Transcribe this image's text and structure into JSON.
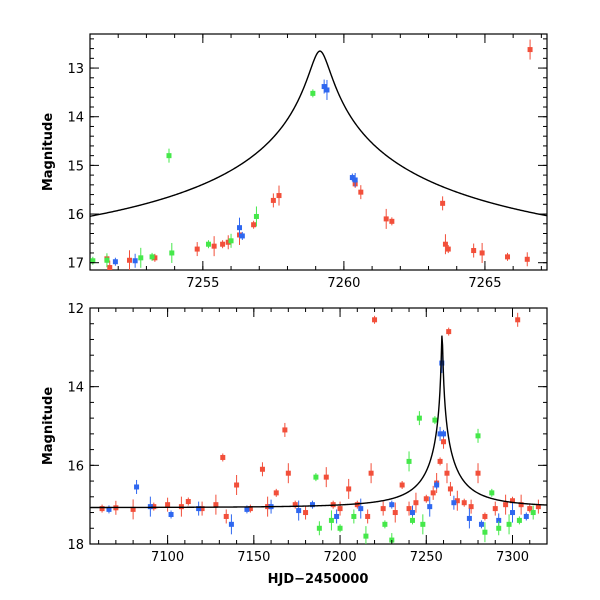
{
  "colors": {
    "red": "#f24f3a",
    "blue": "#2e67f0",
    "green": "#45e84a",
    "model": "#000000"
  },
  "chart_data": [
    {
      "type": "scatter",
      "name": "zoom-panel",
      "title": "",
      "xlabel": "",
      "ylabel": "Magnitude",
      "xlim": [
        7251,
        7267.2
      ],
      "ylim": [
        17.15,
        12.3
      ],
      "y_inverted": true,
      "xticks": [
        7255,
        7260,
        7265
      ],
      "xtick_labels": [
        "7255",
        "7260",
        "7265"
      ],
      "yticks": [
        13,
        14,
        15,
        16,
        17
      ],
      "ytick_labels": [
        "13",
        "14",
        "15",
        "16",
        "17"
      ],
      "model_curve": {
        "peak_x": 7259.15,
        "peak_mag": 12.65,
        "baseline_mag": 17.08,
        "width": 0.32
      },
      "series": [
        {
          "name": "red",
          "points": [
            [
              7251.6,
              16.92
            ],
            [
              7251.7,
              17.1
            ],
            [
              7252.4,
              16.95
            ],
            [
              7253.3,
              16.9
            ],
            [
              7254.8,
              16.72
            ],
            [
              7255.4,
              16.66
            ],
            [
              7255.7,
              16.62
            ],
            [
              7255.9,
              16.58
            ],
            [
              7256.3,
              16.43
            ],
            [
              7256.8,
              16.22
            ],
            [
              7257.5,
              15.72
            ],
            [
              7257.7,
              15.62
            ],
            [
              7260.4,
              15.38
            ],
            [
              7260.6,
              15.55
            ],
            [
              7261.5,
              16.1
            ],
            [
              7261.7,
              16.15
            ],
            [
              7263.5,
              15.78
            ],
            [
              7263.6,
              16.62
            ],
            [
              7263.7,
              16.72
            ],
            [
              7264.6,
              16.75
            ],
            [
              7264.9,
              16.8
            ],
            [
              7265.8,
              16.88
            ],
            [
              7266.5,
              16.93
            ],
            [
              7266.6,
              12.62
            ]
          ]
        },
        {
          "name": "blue",
          "points": [
            [
              7251.9,
              16.98
            ],
            [
              7252.6,
              16.96
            ],
            [
              7256.3,
              16.28
            ],
            [
              7256.4,
              16.45
            ],
            [
              7259.3,
              13.38
            ],
            [
              7259.4,
              13.45
            ],
            [
              7260.3,
              15.25
            ],
            [
              7260.4,
              15.3
            ]
          ]
        },
        {
          "name": "green",
          "points": [
            [
              7251.1,
              16.96
            ],
            [
              7251.6,
              16.95
            ],
            [
              7252.8,
              16.9
            ],
            [
              7253.2,
              16.88
            ],
            [
              7253.8,
              14.8
            ],
            [
              7253.9,
              16.8
            ],
            [
              7255.2,
              16.62
            ],
            [
              7256.0,
              16.55
            ],
            [
              7256.9,
              16.05
            ],
            [
              7258.9,
              13.52
            ]
          ]
        }
      ]
    },
    {
      "type": "scatter",
      "name": "full-panel",
      "title": "",
      "xlabel": "HJD−2450000",
      "ylabel": "Magnitude",
      "xlim": [
        7055,
        7320
      ],
      "ylim": [
        18,
        12
      ],
      "y_inverted": true,
      "xticks": [
        7100,
        7150,
        7200,
        7250,
        7300
      ],
      "xtick_labels": [
        "7100",
        "7150",
        "7200",
        "7250",
        "7300"
      ],
      "yticks": [
        12,
        14,
        16,
        18
      ],
      "ytick_labels": [
        "12",
        "14",
        "16",
        "18"
      ],
      "model_curve": {
        "peak_x": 7259.15,
        "peak_mag": 12.65,
        "baseline_mag": 17.08,
        "width": 0.32
      },
      "series": [
        {
          "name": "red",
          "points": [
            [
              7062,
              17.1
            ],
            [
              7070,
              17.08
            ],
            [
              7080,
              17.12
            ],
            [
              7092,
              17.05
            ],
            [
              7100,
              17.0
            ],
            [
              7108,
              17.05
            ],
            [
              7112,
              16.92
            ],
            [
              7120,
              17.1
            ],
            [
              7128,
              17.0
            ],
            [
              7132,
              15.8
            ],
            [
              7134,
              17.3
            ],
            [
              7140,
              16.5
            ],
            [
              7148,
              17.1
            ],
            [
              7155,
              16.1
            ],
            [
              7158,
              17.05
            ],
            [
              7163,
              16.7
            ],
            [
              7168,
              15.1
            ],
            [
              7170,
              16.2
            ],
            [
              7174,
              17.0
            ],
            [
              7180,
              17.2
            ],
            [
              7192,
              16.3
            ],
            [
              7196,
              17.0
            ],
            [
              7200,
              17.1
            ],
            [
              7205,
              16.6
            ],
            [
              7210,
              17.0
            ],
            [
              7216,
              17.3
            ],
            [
              7218,
              16.2
            ],
            [
              7220,
              12.3
            ],
            [
              7225,
              17.1
            ],
            [
              7232,
              17.2
            ],
            [
              7236,
              16.5
            ],
            [
              7240,
              17.1
            ],
            [
              7244,
              16.95
            ],
            [
              7250,
              16.85
            ],
            [
              7254,
              16.7
            ],
            [
              7256,
              16.45
            ],
            [
              7258,
              15.9
            ],
            [
              7260,
              15.4
            ],
            [
              7262,
              16.2
            ],
            [
              7263,
              12.6
            ],
            [
              7264,
              16.6
            ],
            [
              7268,
              16.9
            ],
            [
              7272,
              16.95
            ],
            [
              7276,
              17.05
            ],
            [
              7280,
              16.2
            ],
            [
              7284,
              17.3
            ],
            [
              7290,
              17.1
            ],
            [
              7296,
              17.0
            ],
            [
              7300,
              16.9
            ],
            [
              7303,
              12.3
            ],
            [
              7305,
              17.0
            ],
            [
              7310,
              17.1
            ],
            [
              7315,
              17.05
            ]
          ]
        },
        {
          "name": "blue",
          "points": [
            [
              7066,
              17.12
            ],
            [
              7082,
              16.55
            ],
            [
              7090,
              17.05
            ],
            [
              7102,
              17.25
            ],
            [
              7118,
              17.1
            ],
            [
              7137,
              17.5
            ],
            [
              7146,
              17.12
            ],
            [
              7160,
              17.05
            ],
            [
              7176,
              17.15
            ],
            [
              7184,
              17.0
            ],
            [
              7198,
              17.3
            ],
            [
              7212,
              17.1
            ],
            [
              7230,
              17.0
            ],
            [
              7242,
              17.2
            ],
            [
              7252,
              17.05
            ],
            [
              7256,
              16.5
            ],
            [
              7258,
              15.2
            ],
            [
              7259,
              13.4
            ],
            [
              7260,
              15.2
            ],
            [
              7266,
              16.95
            ],
            [
              7275,
              17.35
            ],
            [
              7282,
              17.5
            ],
            [
              7292,
              17.4
            ],
            [
              7300,
              17.2
            ],
            [
              7308,
              17.3
            ]
          ]
        },
        {
          "name": "green",
          "points": [
            [
              7186,
              16.3
            ],
            [
              7188,
              17.6
            ],
            [
              7195,
              17.4
            ],
            [
              7200,
              17.6
            ],
            [
              7208,
              17.3
            ],
            [
              7215,
              17.8
            ],
            [
              7226,
              17.5
            ],
            [
              7230,
              17.9
            ],
            [
              7240,
              15.9
            ],
            [
              7242,
              17.4
            ],
            [
              7246,
              14.8
            ],
            [
              7248,
              17.5
            ],
            [
              7255,
              14.85
            ],
            [
              7280,
              15.25
            ],
            [
              7284,
              17.7
            ],
            [
              7288,
              16.7
            ],
            [
              7292,
              17.6
            ],
            [
              7298,
              17.5
            ],
            [
              7304,
              17.4
            ],
            [
              7312,
              17.2
            ]
          ]
        }
      ]
    }
  ]
}
